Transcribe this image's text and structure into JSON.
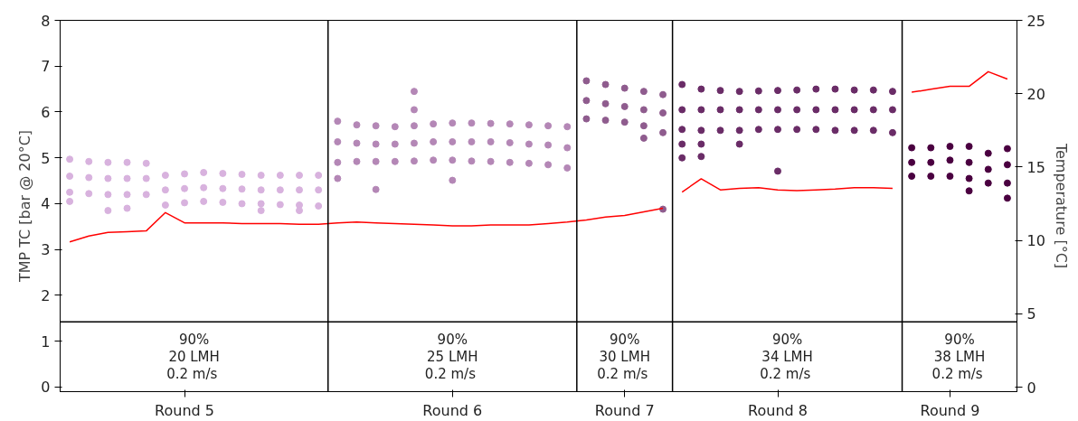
{
  "chart_data": {
    "type": "scatter",
    "ylabel": "TMP TC [bar @ 20°C]",
    "y2label": "Temperature [°C]",
    "categories": [
      null,
      null,
      null,
      null,
      null,
      null,
      "Round 5",
      null,
      null,
      null,
      null,
      null,
      null,
      null,
      null,
      null,
      null,
      null,
      null,
      null,
      "Round 6",
      null,
      null,
      null,
      null,
      null,
      null,
      null,
      null,
      "Round 7",
      null,
      null,
      null,
      null,
      null,
      null,
      null,
      "Round 8",
      null,
      null,
      null,
      null,
      null,
      null,
      null,
      null,
      "Round 9",
      null,
      null,
      null
    ],
    "ylim": [
      -0.1,
      8
    ],
    "yticks": [
      0,
      1,
      2,
      3,
      4,
      5,
      6,
      7,
      8
    ],
    "y2lim": [
      -0.3,
      25
    ],
    "y2ticks": [
      0,
      5,
      10,
      15,
      20,
      25
    ],
    "grid": false,
    "marker": "circle",
    "series": [
      {
        "colors": [
          "#d8b2de",
          "#d8b2de",
          "#d8b2de",
          "#d8b2de",
          "#d8b2de",
          "#d8b2de",
          "#d8b2de",
          "#d8b2de",
          "#d8b2de",
          "#d8b2de",
          "#d8b2de",
          "#d8b2de",
          "#d8b2de",
          "#d8b2de",
          "#b487b6",
          "#b487b6",
          "#b487b6",
          "#b487b6",
          "#b487b6",
          "#b487b6",
          "#b487b6",
          "#b487b6",
          "#b487b6",
          "#b487b6",
          "#b487b6",
          "#b487b6",
          "#b487b6",
          "#8f5c8e",
          "#8f5c8e",
          "#8f5c8e",
          "#8f5c8e",
          "#8f5c8e",
          "#6a2c67",
          "#6a2c67",
          "#6a2c67",
          "#6a2c67",
          "#6a2c67",
          "#6a2c67",
          "#6a2c67",
          "#6a2c67",
          "#6a2c67",
          "#6a2c67",
          "#6a2c67",
          "#6a2c67",
          "#4a0040",
          "#4a0040",
          "#4a0040",
          "#4a0040",
          "#4a0040",
          "#4a0040"
        ],
        "values": [
          4.97,
          4.92,
          4.9,
          4.9,
          4.88,
          4.62,
          4.65,
          4.68,
          4.66,
          4.64,
          4.62,
          4.62,
          4.62,
          4.62,
          5.8,
          5.72,
          5.7,
          5.68,
          5.7,
          5.74,
          5.76,
          5.76,
          5.75,
          5.74,
          5.72,
          5.7,
          5.68,
          6.68,
          6.6,
          6.52,
          6.45,
          6.38,
          6.6,
          6.5,
          6.47,
          6.45,
          6.46,
          6.47,
          6.48,
          6.5,
          6.5,
          6.48,
          6.48,
          6.45,
          5.22,
          5.22,
          5.25,
          5.25,
          5.1,
          5.2
        ]
      },
      {
        "colors": [
          "#d8b2de",
          "#d8b2de",
          "#d8b2de",
          "#d8b2de",
          "#d8b2de",
          "#d8b2de",
          "#d8b2de",
          "#d8b2de",
          "#d8b2de",
          "#d8b2de",
          "#d8b2de",
          "#d8b2de",
          "#d8b2de",
          "#d8b2de",
          "#b487b6",
          "#b487b6",
          "#b487b6",
          "#b487b6",
          "#b487b6",
          "#b487b6",
          "#b487b6",
          "#b487b6",
          "#b487b6",
          "#b487b6",
          "#b487b6",
          "#b487b6",
          "#b487b6",
          "#8f5c8e",
          "#8f5c8e",
          "#8f5c8e",
          "#8f5c8e",
          "#8f5c8e",
          "#6a2c67",
          "#6a2c67",
          "#6a2c67",
          "#6a2c67",
          "#6a2c67",
          "#6a2c67",
          "#6a2c67",
          "#6a2c67",
          "#6a2c67",
          "#6a2c67",
          "#6a2c67",
          "#6a2c67",
          "#4a0040",
          "#4a0040",
          "#4a0040",
          "#4a0040",
          "#4a0040",
          "#4a0040"
        ],
        "values": [
          4.6,
          4.57,
          4.55,
          4.55,
          4.55,
          4.3,
          4.33,
          4.35,
          4.33,
          4.32,
          4.3,
          4.3,
          4.3,
          4.3,
          5.35,
          5.32,
          5.3,
          5.3,
          5.32,
          5.35,
          5.35,
          5.35,
          5.35,
          5.33,
          5.3,
          5.28,
          5.22,
          6.25,
          6.18,
          6.12,
          6.05,
          5.98,
          6.05,
          6.05,
          6.05,
          6.05,
          6.05,
          6.05,
          6.05,
          6.05,
          6.05,
          6.05,
          6.05,
          6.05,
          4.9,
          4.9,
          4.95,
          4.9,
          4.75,
          4.85
        ]
      },
      {
        "colors": [
          "#d8b2de",
          "#d8b2de",
          "#d8b2de",
          "#d8b2de",
          "#d8b2de",
          "#d8b2de",
          "#d8b2de",
          "#d8b2de",
          "#d8b2de",
          "#d8b2de",
          "#d8b2de",
          "#d8b2de",
          "#d8b2de",
          "#d8b2de",
          "#b487b6",
          "#b487b6",
          "#b487b6",
          "#b487b6",
          "#b487b6",
          "#b487b6",
          "#b487b6",
          "#b487b6",
          "#b487b6",
          "#b487b6",
          "#b487b6",
          "#b487b6",
          "#b487b6",
          "#8f5c8e",
          "#8f5c8e",
          "#8f5c8e",
          "#8f5c8e",
          "#8f5c8e",
          "#6a2c67",
          "#6a2c67",
          "#6a2c67",
          "#6a2c67",
          "#6a2c67",
          "#6a2c67",
          "#6a2c67",
          "#6a2c67",
          "#6a2c67",
          "#6a2c67",
          "#6a2c67",
          "#6a2c67",
          "#4a0040",
          "#4a0040",
          "#4a0040",
          "#4a0040",
          "#4a0040",
          "#4a0040"
        ],
        "values": [
          4.25,
          4.22,
          4.2,
          4.2,
          4.2,
          3.97,
          4.02,
          4.05,
          4.03,
          4.0,
          4.0,
          3.98,
          3.97,
          3.95,
          4.9,
          4.92,
          4.92,
          4.92,
          4.93,
          4.95,
          4.95,
          4.93,
          4.92,
          4.9,
          4.88,
          4.85,
          4.78,
          5.85,
          5.82,
          5.78,
          5.7,
          5.55,
          5.62,
          5.6,
          5.6,
          5.6,
          5.62,
          5.62,
          5.62,
          5.62,
          5.6,
          5.6,
          5.6,
          5.55,
          4.6,
          4.6,
          4.6,
          4.55,
          4.45,
          4.45
        ]
      },
      {
        "colors": [
          "#d8b2de",
          "#d8b2de",
          "#d8b2de",
          "#d8b2de",
          "#d8b2de",
          "#d8b2de",
          "#d8b2de",
          "#d8b2de",
          "#d8b2de",
          "#d8b2de",
          "#d8b2de",
          "#d8b2de",
          "#d8b2de",
          "#d8b2de",
          "#b487b6",
          "#b487b6",
          "#b487b6",
          "#b487b6",
          "#b487b6",
          "#b487b6",
          "#b487b6",
          "#b487b6",
          "#b487b6",
          "#b487b6",
          "#b487b6",
          "#b487b6",
          "#b487b6",
          "#8f5c8e",
          "#8f5c8e",
          "#8f5c8e",
          "#8f5c8e",
          "#8f5c8e",
          "#6a2c67",
          "#6a2c67",
          "#6a2c67",
          "#6a2c67",
          "#6a2c67",
          "#6a2c67",
          "#6a2c67",
          "#6a2c67",
          "#6a2c67",
          "#6a2c67",
          "#6a2c67",
          "#6a2c67",
          "#4a0040",
          "#4a0040",
          "#4a0040",
          "#4a0040",
          "#4a0040",
          "#4a0040"
        ],
        "values": [
          4.05,
          null,
          3.85,
          3.9,
          null,
          null,
          null,
          null,
          null,
          null,
          3.85,
          null,
          3.85,
          null,
          4.55,
          null,
          4.31,
          null,
          6.05,
          null,
          4.51,
          null,
          null,
          null,
          null,
          null,
          null,
          null,
          null,
          null,
          5.43,
          3.88,
          5.0,
          5.03,
          null,
          5.3,
          null,
          4.71,
          null,
          null,
          null,
          null,
          null,
          null,
          null,
          null,
          null,
          4.28,
          null,
          4.12
        ]
      },
      {
        "colors": [
          "#d8b2de",
          "#d8b2de",
          "#d8b2de",
          "#d8b2de",
          "#d8b2de",
          "#d8b2de",
          "#d8b2de",
          "#d8b2de",
          "#d8b2de",
          "#d8b2de",
          "#d8b2de",
          "#d8b2de",
          "#d8b2de",
          "#d8b2de",
          "#b487b6",
          "#b487b6",
          "#b487b6",
          "#b487b6",
          "#b487b6",
          "#b487b6",
          "#b487b6",
          "#b487b6",
          "#b487b6",
          "#b487b6",
          "#b487b6",
          "#b487b6",
          "#b487b6",
          "#8f5c8e",
          "#8f5c8e",
          "#8f5c8e",
          "#8f5c8e",
          "#8f5c8e",
          "#6a2c67",
          "#6a2c67",
          "#6a2c67",
          "#6a2c67",
          "#6a2c67",
          "#6a2c67",
          "#6a2c67",
          "#6a2c67",
          "#6a2c67",
          "#6a2c67",
          "#6a2c67",
          "#6a2c67",
          "#4a0040",
          "#4a0040",
          "#4a0040",
          "#4a0040",
          "#4a0040",
          "#4a0040"
        ],
        "values": [
          null,
          null,
          null,
          null,
          null,
          null,
          null,
          null,
          null,
          null,
          null,
          null,
          null,
          null,
          null,
          null,
          null,
          null,
          6.45,
          null,
          null,
          null,
          null,
          null,
          null,
          null,
          null,
          null,
          null,
          null,
          null,
          null,
          5.3,
          5.3,
          null,
          null,
          null,
          null,
          null,
          null,
          null,
          null,
          null,
          null,
          null,
          null,
          null,
          null,
          null,
          null
        ]
      },
      {
        "type": "line",
        "axis": "y2",
        "marker": "none",
        "color": "#ff0000",
        "values": [
          9.9,
          10.3,
          10.55,
          10.6,
          10.65,
          11.9,
          11.2,
          11.2,
          11.2,
          11.15,
          11.15,
          11.15,
          11.1,
          11.1,
          11.2,
          11.25,
          11.2,
          11.15,
          11.1,
          11.05,
          11.0,
          11.0,
          11.05,
          11.05,
          11.05,
          11.15,
          11.25,
          11.4,
          11.6,
          11.7,
          11.95,
          12.2,
          null,
          null,
          null,
          null,
          null,
          null,
          null,
          null,
          null,
          null,
          null,
          null,
          null,
          null,
          null,
          null,
          null,
          null
        ]
      },
      {
        "type": "line",
        "axis": "y2",
        "marker": "none",
        "color": "#ff0000",
        "values": [
          null,
          null,
          null,
          null,
          null,
          null,
          null,
          null,
          null,
          null,
          null,
          null,
          null,
          null,
          null,
          null,
          null,
          null,
          null,
          null,
          null,
          null,
          null,
          null,
          null,
          null,
          null,
          null,
          null,
          null,
          null,
          null,
          13.3,
          14.2,
          13.45,
          13.55,
          13.6,
          13.45,
          13.4,
          13.45,
          13.5,
          13.6,
          13.6,
          13.55,
          null,
          null,
          null,
          null,
          null,
          null
        ]
      },
      {
        "type": "line",
        "axis": "y2",
        "marker": "none",
        "color": "#ff0000",
        "values": [
          null,
          null,
          null,
          null,
          null,
          null,
          null,
          null,
          null,
          null,
          null,
          null,
          null,
          null,
          null,
          null,
          null,
          null,
          null,
          null,
          null,
          null,
          null,
          null,
          null,
          null,
          null,
          null,
          null,
          null,
          null,
          null,
          null,
          null,
          null,
          null,
          null,
          null,
          null,
          null,
          null,
          null,
          null,
          null,
          20.1,
          20.3,
          20.5,
          20.5,
          21.5,
          21.0
        ]
      }
    ],
    "ref_lines": [
      {
        "axis": "y",
        "value": 1.42
      }
    ],
    "annotations": [
      "90%\n20 LMH\n 0.2 m/s",
      "90%\n25 LMH\n 0.2 m/s",
      "90%\n30 LMH\n 0.2 m/s",
      "90%\n34 LMH\n 0.2 m/s",
      "90%\n38 LMH\n 0.2 m/s"
    ]
  }
}
